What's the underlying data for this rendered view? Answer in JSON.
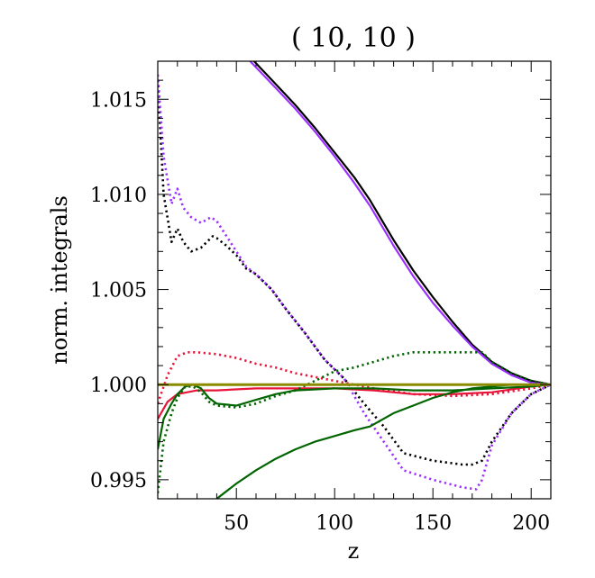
{
  "chart_data": {
    "type": "line",
    "title": "( 10, 10 )",
    "xlabel": "z",
    "ylabel": "norm. integrals",
    "xlim": [
      10,
      210
    ],
    "ylim": [
      0.994,
      1.017
    ],
    "xticks": [
      50,
      100,
      150,
      200
    ],
    "xtick_labels": [
      "50",
      "100",
      "150",
      "200"
    ],
    "yticks": [
      0.995,
      1.0,
      1.005,
      1.01,
      1.015
    ],
    "ytick_labels": [
      "0.995",
      "1.000",
      "1.005",
      "1.010",
      "1.015"
    ],
    "grid": false,
    "series": [
      {
        "name": "black-solid",
        "color": "#000000",
        "style": "solid",
        "x": [
          59,
          70,
          80,
          90,
          100,
          110,
          118,
          130,
          140,
          150,
          160,
          170,
          180,
          190,
          200,
          210
        ],
        "y": [
          1.017,
          1.0158,
          1.0147,
          1.0135,
          1.0122,
          1.0109,
          1.0097,
          1.0076,
          1.006,
          1.0046,
          1.0033,
          1.0021,
          1.0012,
          1.0006,
          1.0002,
          1.0
        ]
      },
      {
        "name": "purple-solid",
        "color": "#9b30ff",
        "style": "solid",
        "x": [
          57,
          70,
          80,
          90,
          100,
          110,
          118,
          130,
          140,
          150,
          160,
          170,
          180,
          190,
          200,
          210
        ],
        "y": [
          1.017,
          1.0156,
          1.0145,
          1.0133,
          1.012,
          1.0106,
          1.0094,
          1.0073,
          1.0057,
          1.0043,
          1.0031,
          1.002,
          1.0011,
          1.0005,
          1.0001,
          1.0
        ]
      },
      {
        "name": "black-dotted",
        "color": "#000000",
        "style": "dotted",
        "x": [
          10,
          13,
          17,
          20,
          23,
          27,
          32,
          38,
          40,
          45,
          50,
          55,
          60,
          68,
          75,
          85,
          95,
          105,
          115,
          125,
          135,
          150,
          165,
          170,
          175,
          180,
          190,
          200,
          210
        ],
        "y": [
          1.016,
          1.01,
          1.0075,
          1.0082,
          1.0075,
          1.007,
          1.0072,
          1.0078,
          1.0077,
          1.0073,
          1.0068,
          1.0061,
          1.0058,
          1.005,
          1.004,
          1.0027,
          1.0013,
          1.0003,
          0.999,
          0.9978,
          0.9964,
          0.996,
          0.9958,
          0.9958,
          0.996,
          0.997,
          0.9985,
          0.9995,
          1.0
        ]
      },
      {
        "name": "purple-dotted",
        "color": "#9b30ff",
        "style": "dotted",
        "x": [
          10,
          13,
          17,
          20,
          23,
          27,
          32,
          37,
          40,
          45,
          50,
          55,
          60,
          68,
          75,
          85,
          95,
          105,
          115,
          125,
          135,
          150,
          165,
          172,
          175,
          180,
          190,
          200,
          210
        ],
        "y": [
          1.0163,
          1.012,
          1.0095,
          1.0103,
          1.0093,
          1.0088,
          1.0085,
          1.0088,
          1.0086,
          1.0078,
          1.007,
          1.0062,
          1.0058,
          1.005,
          1.004,
          1.0027,
          1.0013,
          1.0003,
          0.9985,
          0.997,
          0.9955,
          0.995,
          0.9946,
          0.9945,
          0.995,
          0.9968,
          0.9985,
          0.9995,
          1.0
        ]
      },
      {
        "name": "red-solid",
        "color": "#e8153a",
        "style": "solid",
        "x": [
          10,
          15,
          20,
          30,
          40,
          60,
          80,
          100,
          120,
          140,
          160,
          180,
          200,
          210
        ],
        "y": [
          0.9982,
          0.9991,
          0.9995,
          0.9997,
          0.9997,
          0.9998,
          0.9998,
          0.9998,
          0.9997,
          0.9995,
          0.9995,
          0.9996,
          0.9999,
          1.0
        ]
      },
      {
        "name": "red-dotted",
        "color": "#e8153a",
        "style": "dotted",
        "x": [
          10,
          15,
          20,
          25,
          30,
          40,
          50,
          60,
          70,
          80,
          100,
          120,
          140,
          160,
          180,
          200,
          210
        ],
        "y": [
          0.999,
          1.0005,
          1.0015,
          1.0017,
          1.0017,
          1.0016,
          1.0014,
          1.0011,
          1.0009,
          1.0006,
          1.0002,
          0.9998,
          0.9995,
          0.9994,
          0.9995,
          0.9998,
          1.0
        ]
      },
      {
        "name": "green-solid-upper",
        "color": "#006400",
        "style": "solid",
        "x": [
          10,
          13,
          17,
          20,
          24,
          28,
          32,
          36,
          40,
          50,
          60,
          70,
          80,
          100,
          120,
          140,
          160,
          180,
          200,
          210
        ],
        "y": [
          0.9966,
          0.9982,
          0.999,
          0.9995,
          0.9999,
          1.0,
          0.9998,
          0.9993,
          0.999,
          0.9989,
          0.9992,
          0.9995,
          0.9997,
          0.9998,
          0.9998,
          0.9997,
          0.9997,
          0.9998,
          0.9999,
          1.0
        ]
      },
      {
        "name": "green-solid-lower",
        "color": "#006400",
        "style": "solid",
        "x": [
          40,
          50,
          60,
          70,
          80,
          90,
          100,
          110,
          118,
          130,
          140,
          150,
          160,
          170,
          180,
          190,
          200,
          210
        ],
        "y": [
          0.994,
          0.9948,
          0.9955,
          0.9961,
          0.9966,
          0.997,
          0.9973,
          0.9976,
          0.9978,
          0.9985,
          0.9989,
          0.9993,
          0.9996,
          0.9998,
          0.9999,
          1.0,
          1.0,
          1.0
        ]
      },
      {
        "name": "green-dotted",
        "color": "#006400",
        "style": "dotted",
        "x": [
          10,
          13,
          17,
          20,
          24,
          28,
          32,
          36,
          40,
          50,
          60,
          70,
          80,
          90,
          100,
          110,
          120,
          130,
          140,
          150,
          160,
          170,
          175,
          180,
          190,
          200,
          210
        ],
        "y": [
          0.9943,
          0.997,
          0.9985,
          0.9993,
          0.9999,
          0.9999,
          0.9996,
          0.9991,
          0.9989,
          0.9988,
          0.999,
          0.9994,
          0.9997,
          1.0002,
          1.0007,
          1.0009,
          1.0012,
          1.0015,
          1.0017,
          1.0017,
          1.0017,
          1.0017,
          1.0017,
          1.0012,
          1.0006,
          1.0002,
          1.0
        ]
      },
      {
        "name": "olive-solid",
        "color": "#8b8b00",
        "style": "solid",
        "x": [
          10,
          210
        ],
        "y": [
          1.0,
          1.0
        ]
      }
    ]
  }
}
